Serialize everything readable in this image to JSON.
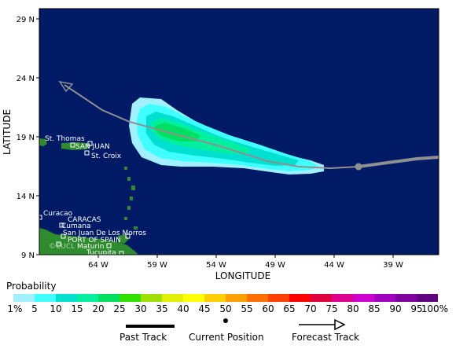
{
  "map": {
    "axes": {
      "y_ticks": [
        "29 N",
        "24 N",
        "19 N",
        "14 N",
        "9 N"
      ],
      "x_ticks": [
        "64 W",
        "59 W",
        "54 W",
        "49 W",
        "44 W",
        "39 W"
      ],
      "x_title": "LONGITUDE",
      "y_title": "LATITUDE"
    },
    "places": [
      {
        "label": "St. Thomas"
      },
      {
        "label": "SAN JUAN"
      },
      {
        "label": "St. Croix"
      },
      {
        "label": "Curacao"
      },
      {
        "label": "CARACAS"
      },
      {
        "label": "Cumana"
      },
      {
        "label": "San Juan De Los Morros"
      },
      {
        "label": "PORT OF SPAIN"
      },
      {
        "label": "Maturin"
      },
      {
        "label": "Tucupita"
      }
    ],
    "credit": "©CUCL",
    "colors": {
      "ocean": "#001a66",
      "land": "#2e8b2e",
      "track": "#909090"
    }
  },
  "legend": {
    "title": "Probability",
    "labels": [
      "1%",
      "5",
      "10",
      "15",
      "20",
      "25",
      "30",
      "35",
      "40",
      "45",
      "50",
      "55",
      "60",
      "65",
      "70",
      "75",
      "80",
      "85",
      "90",
      "95",
      "100%"
    ],
    "colors": [
      "#a0f0ff",
      "#40ffff",
      "#00e0d0",
      "#00f0a0",
      "#00e060",
      "#30e000",
      "#a0e000",
      "#e0f000",
      "#ffff00",
      "#ffd000",
      "#ffa000",
      "#ff7000",
      "#ff4000",
      "#ff0000",
      "#e00040",
      "#e00090",
      "#d000d0",
      "#a000c0",
      "#8000a0",
      "#600080"
    ],
    "key": {
      "past_track": "Past Track",
      "current_position": "Current Position",
      "forecast_track": "Forecast Track"
    }
  }
}
